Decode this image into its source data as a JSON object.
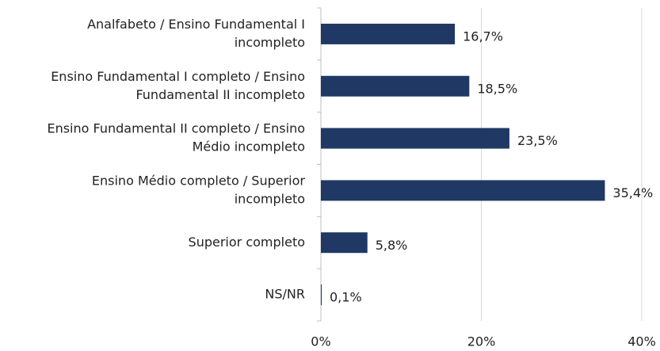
{
  "chart_data": {
    "type": "barh",
    "categories": [
      [
        "Analfabeto / Ensino Fundamental I",
        "incompleto"
      ],
      [
        "Ensino Fundamental I completo / Ensino",
        "Fundamental II incompleto"
      ],
      [
        "Ensino Fundamental II completo / Ensino",
        "Médio incompleto"
      ],
      [
        "Ensino Médio completo / Superior",
        "incompleto"
      ],
      [
        "Superior completo"
      ],
      [
        "NS/NR"
      ]
    ],
    "values": [
      16.7,
      18.5,
      23.5,
      35.4,
      5.8,
      0.1
    ],
    "value_labels": [
      "16,7%",
      "18,5%",
      "23,5%",
      "35,4%",
      "5,8%",
      "0,1%"
    ],
    "color": "#1f3864",
    "xlim": [
      0,
      40
    ],
    "xticks": [
      {
        "value": 0,
        "label": "0%"
      },
      {
        "value": 20,
        "label": "20%"
      },
      {
        "value": 40,
        "label": "40%"
      }
    ],
    "grid": true
  }
}
